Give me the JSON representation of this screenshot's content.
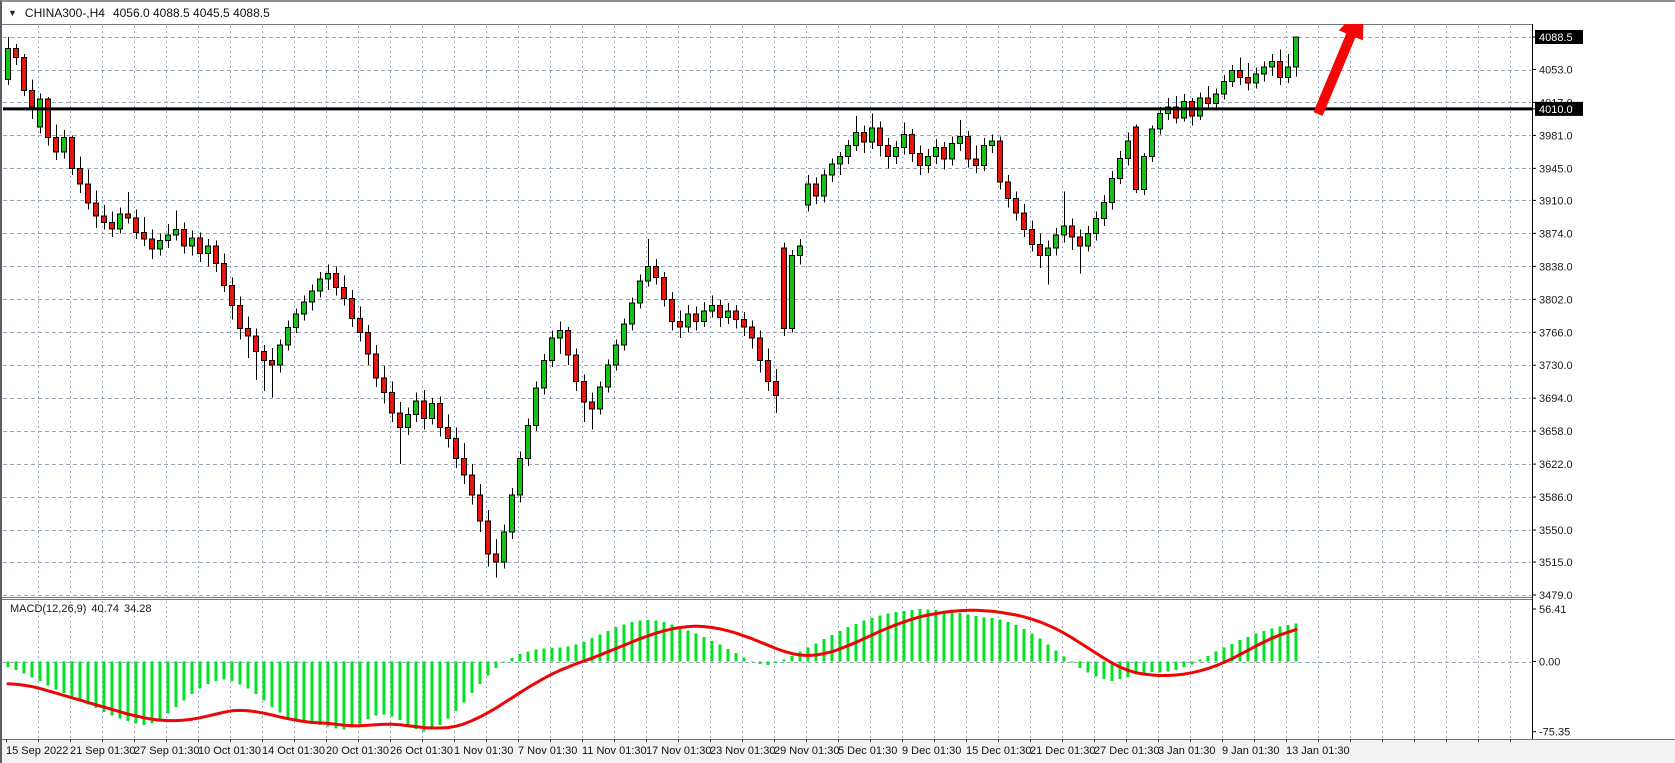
{
  "header": {
    "symbol": "CHINA300-,H4",
    "ohlc_text": "4056.0 4088.5 4045.5 4088.5",
    "open": "4056.0",
    "high": "4088.5",
    "low": "4045.5",
    "close": "4088.5",
    "dropdown_icon": "▼"
  },
  "price_axis": {
    "current_price_badge": "4088.5",
    "hline_badge": "4010.0",
    "labels": [
      {
        "text": "4088.5",
        "value": 4088.5,
        "badge": true
      },
      {
        "text": "4053.0",
        "value": 4053,
        "badge": false
      },
      {
        "text": "4017.0",
        "value": 4017,
        "badge": false
      },
      {
        "text": "4010.0",
        "value": 4010,
        "badge": true
      },
      {
        "text": "3981.0",
        "value": 3981,
        "badge": false
      },
      {
        "text": "3945.0",
        "value": 3945,
        "badge": false
      },
      {
        "text": "3910.0",
        "value": 3910,
        "badge": false
      },
      {
        "text": "3874.0",
        "value": 3874,
        "badge": false
      },
      {
        "text": "3838.0",
        "value": 3838,
        "badge": false
      },
      {
        "text": "3802.0",
        "value": 3802,
        "badge": false
      },
      {
        "text": "3766.0",
        "value": 3766,
        "badge": false
      },
      {
        "text": "3730.0",
        "value": 3730,
        "badge": false
      },
      {
        "text": "3694.0",
        "value": 3694,
        "badge": false
      },
      {
        "text": "3658.0",
        "value": 3658,
        "badge": false
      },
      {
        "text": "3622.0",
        "value": 3622,
        "badge": false
      },
      {
        "text": "3586.0",
        "value": 3586,
        "badge": false
      },
      {
        "text": "3550.0",
        "value": 3550,
        "badge": false
      },
      {
        "text": "3515.0",
        "value": 3515,
        "badge": false
      },
      {
        "text": "3479.0",
        "value": 3479,
        "badge": false
      }
    ]
  },
  "time_axis": {
    "labels": [
      "15 Sep 2022",
      "21 Sep 01:30",
      "27 Sep 01:30",
      "10 Oct 01:30",
      "14 Oct 01:30",
      "20 Oct 01:30",
      "26 Oct 01:30",
      "1 Nov 01:30",
      "7 Nov 01:30",
      "11 Nov 01:30",
      "17 Nov 01:30",
      "23 Nov 01:30",
      "29 Nov 01:30",
      "5 Dec 01:30",
      "9 Dec 01:30",
      "15 Dec 01:30",
      "21 Dec 01:30",
      "27 Dec 01:30",
      "3 Jan 01:30",
      "9 Jan 01:30",
      "13 Jan 01:30"
    ]
  },
  "macd_panel": {
    "label": "MACD(12,26,9)",
    "value": "40.74",
    "signal_value": "34.28",
    "axis_labels": [
      {
        "text": "56.41",
        "value": 56.41
      },
      {
        "text": "0.00",
        "value": 0
      },
      {
        "text": "-75.35",
        "value": -75.35
      }
    ]
  },
  "colors": {
    "bull": "#17c317",
    "bear": "#e8150d",
    "wick": "#000000",
    "macd_bar": "#00e327",
    "macd_signal": "#ee0505",
    "grid": "#9aa7b8",
    "hline": "#000000",
    "badge_bg": "#000000",
    "badge_text": "#ffffff",
    "arrow": "#f40606",
    "axis_text": "#1a1a1a",
    "time_strip_bg": "#f2f2f2",
    "shift_marker": "#8a8a8a"
  },
  "annotations": {
    "arrow": {
      "tail_x": 1316,
      "tail_y": 112,
      "head_x": 1362,
      "head_y": 2
    },
    "shift_marker_x": 1305
  },
  "chart_data": {
    "type": "candlestick",
    "title": "CHINA300-,H4",
    "symbol": "CHINA300-",
    "timeframe": "H4",
    "x_range_labels": [
      "15 Sep 2022",
      "13 Jan 01:30"
    ],
    "price_ylim": [
      3479,
      4102
    ],
    "horizontal_line": 4010.0,
    "current_price": 4088.5,
    "last_bar_ohlc": [
      4056.0,
      4088.5,
      4045.5,
      4088.5
    ],
    "candles_ohlc": [
      [
        4042,
        4088.5,
        4036,
        4076
      ],
      [
        4076,
        4081,
        4058,
        4066
      ],
      [
        4066,
        4070,
        4024,
        4030
      ],
      [
        4030,
        4042,
        3999,
        4012
      ],
      [
        3990,
        4027,
        3983,
        4021
      ],
      [
        4021,
        4023,
        3970,
        3979
      ],
      [
        3979,
        3993,
        3954,
        3963
      ],
      [
        3963,
        3987,
        3956,
        3979
      ],
      [
        3979,
        3981,
        3938,
        3945
      ],
      [
        3945,
        3958,
        3918,
        3928
      ],
      [
        3928,
        3944,
        3900,
        3907
      ],
      [
        3907,
        3921,
        3880,
        3893
      ],
      [
        3893,
        3905,
        3878,
        3886
      ],
      [
        3886,
        3898,
        3870,
        3879
      ],
      [
        3879,
        3902,
        3874,
        3895
      ],
      [
        3895,
        3919,
        3885,
        3891
      ],
      [
        3891,
        3900,
        3868,
        3875
      ],
      [
        3875,
        3892,
        3860,
        3868
      ],
      [
        3868,
        3878,
        3846,
        3857
      ],
      [
        3857,
        3874,
        3850,
        3866
      ],
      [
        3866,
        3884,
        3858,
        3872
      ],
      [
        3872,
        3899,
        3866,
        3878
      ],
      [
        3878,
        3886,
        3852,
        3860
      ],
      [
        3860,
        3877,
        3850,
        3869
      ],
      [
        3869,
        3875,
        3843,
        3852
      ],
      [
        3852,
        3868,
        3838,
        3860
      ],
      [
        3860,
        3866,
        3832,
        3841
      ],
      [
        3841,
        3852,
        3810,
        3817
      ],
      [
        3817,
        3826,
        3780,
        3795
      ],
      [
        3795,
        3805,
        3758,
        3770
      ],
      [
        3770,
        3783,
        3738,
        3762
      ],
      [
        3762,
        3770,
        3714,
        3745
      ],
      [
        3745,
        3752,
        3702,
        3735
      ],
      [
        3735,
        3749,
        3695,
        3730
      ],
      [
        3730,
        3758,
        3722,
        3752
      ],
      [
        3752,
        3779,
        3746,
        3771
      ],
      [
        3771,
        3792,
        3765,
        3786
      ],
      [
        3786,
        3806,
        3779,
        3799
      ],
      [
        3799,
        3818,
        3790,
        3811
      ],
      [
        3811,
        3832,
        3804,
        3824
      ],
      [
        3824,
        3840,
        3812,
        3830
      ],
      [
        3830,
        3838,
        3806,
        3815
      ],
      [
        3815,
        3828,
        3795,
        3803
      ],
      [
        3803,
        3812,
        3772,
        3781
      ],
      [
        3781,
        3794,
        3756,
        3766
      ],
      [
        3766,
        3774,
        3730,
        3742
      ],
      [
        3742,
        3752,
        3706,
        3716
      ],
      [
        3716,
        3729,
        3688,
        3700
      ],
      [
        3700,
        3712,
        3668,
        3678
      ],
      [
        3678,
        3690,
        3622,
        3662
      ],
      [
        3662,
        3684,
        3654,
        3676
      ],
      [
        3676,
        3700,
        3668,
        3691
      ],
      [
        3691,
        3703,
        3660,
        3672
      ],
      [
        3672,
        3694,
        3665,
        3688
      ],
      [
        3688,
        3696,
        3652,
        3662
      ],
      [
        3662,
        3676,
        3640,
        3650
      ],
      [
        3650,
        3662,
        3618,
        3628
      ],
      [
        3628,
        3645,
        3600,
        3610
      ],
      [
        3610,
        3622,
        3578,
        3588
      ],
      [
        3588,
        3600,
        3548,
        3560
      ],
      [
        3560,
        3572,
        3510,
        3524
      ],
      [
        3524,
        3540,
        3498,
        3515
      ],
      [
        3515,
        3556,
        3508,
        3548
      ],
      [
        3548,
        3596,
        3540,
        3588
      ],
      [
        3588,
        3636,
        3580,
        3628
      ],
      [
        3628,
        3672,
        3620,
        3664
      ],
      [
        3664,
        3712,
        3658,
        3705
      ],
      [
        3705,
        3742,
        3698,
        3735
      ],
      [
        3735,
        3768,
        3728,
        3760
      ],
      [
        3760,
        3778,
        3742,
        3768
      ],
      [
        3768,
        3772,
        3730,
        3741
      ],
      [
        3741,
        3748,
        3702,
        3712
      ],
      [
        3712,
        3720,
        3668,
        3690
      ],
      [
        3690,
        3700,
        3660,
        3682
      ],
      [
        3682,
        3712,
        3676,
        3706
      ],
      [
        3706,
        3736,
        3700,
        3730
      ],
      [
        3730,
        3758,
        3724,
        3752
      ],
      [
        3752,
        3781,
        3746,
        3775
      ],
      [
        3775,
        3804,
        3768,
        3798
      ],
      [
        3798,
        3829,
        3792,
        3822
      ],
      [
        3822,
        3868,
        3816,
        3838
      ],
      [
        3838,
        3846,
        3818,
        3826
      ],
      [
        3826,
        3832,
        3794,
        3802
      ],
      [
        3802,
        3810,
        3768,
        3778
      ],
      [
        3778,
        3790,
        3760,
        3772
      ],
      [
        3772,
        3796,
        3766,
        3786
      ],
      [
        3786,
        3794,
        3768,
        3778
      ],
      [
        3778,
        3799,
        3772,
        3789
      ],
      [
        3789,
        3806,
        3782,
        3795
      ],
      [
        3795,
        3801,
        3772,
        3782
      ],
      [
        3782,
        3798,
        3775,
        3789
      ],
      [
        3789,
        3796,
        3770,
        3780
      ],
      [
        3780,
        3788,
        3762,
        3772
      ],
      [
        3772,
        3779,
        3748,
        3760
      ],
      [
        3760,
        3768,
        3722,
        3735
      ],
      [
        3735,
        3748,
        3702,
        3712
      ],
      [
        3712,
        3726,
        3678,
        3697
      ],
      [
        3858,
        3864,
        3762,
        3770
      ],
      [
        3770,
        3856,
        3766,
        3850
      ],
      [
        3850,
        3868,
        3840,
        3860
      ],
      [
        3905,
        3938,
        3898,
        3928
      ],
      [
        3928,
        3935,
        3906,
        3915
      ],
      [
        3915,
        3944,
        3908,
        3938
      ],
      [
        3938,
        3956,
        3930,
        3950
      ],
      [
        3950,
        3963,
        3938,
        3958
      ],
      [
        3958,
        3976,
        3950,
        3970
      ],
      [
        3970,
        4002,
        3964,
        3984
      ],
      [
        3984,
        3992,
        3962,
        3974
      ],
      [
        3974,
        4005,
        3966,
        3989
      ],
      [
        3989,
        3996,
        3958,
        3970
      ],
      [
        3970,
        3978,
        3945,
        3958
      ],
      [
        3958,
        3975,
        3950,
        3968
      ],
      [
        3968,
        3995,
        3960,
        3982
      ],
      [
        3982,
        3988,
        3952,
        3961
      ],
      [
        3961,
        3970,
        3938,
        3948
      ],
      [
        3948,
        3966,
        3940,
        3958
      ],
      [
        3958,
        3977,
        3950,
        3968
      ],
      [
        3968,
        3974,
        3944,
        3955
      ],
      [
        3955,
        3980,
        3948,
        3972
      ],
      [
        3972,
        3998,
        3964,
        3980
      ],
      [
        3980,
        3986,
        3946,
        3955
      ],
      [
        3955,
        3970,
        3940,
        3948
      ],
      [
        3948,
        3978,
        3942,
        3970
      ],
      [
        3970,
        3982,
        3962,
        3975
      ],
      [
        3975,
        3980,
        3922,
        3930
      ],
      [
        3930,
        3938,
        3902,
        3912
      ],
      [
        3912,
        3920,
        3888,
        3896
      ],
      [
        3896,
        3906,
        3870,
        3878
      ],
      [
        3878,
        3888,
        3854,
        3862
      ],
      [
        3862,
        3874,
        3836,
        3850
      ],
      [
        3850,
        3866,
        3818,
        3858
      ],
      [
        3858,
        3880,
        3850,
        3872
      ],
      [
        3872,
        3920,
        3864,
        3882
      ],
      [
        3882,
        3890,
        3856,
        3870
      ],
      [
        3870,
        3878,
        3830,
        3860
      ],
      [
        3860,
        3882,
        3854,
        3874
      ],
      [
        3874,
        3898,
        3866,
        3890
      ],
      [
        3890,
        3916,
        3882,
        3908
      ],
      [
        3908,
        3942,
        3900,
        3934
      ],
      [
        3934,
        3964,
        3928,
        3956
      ],
      [
        3956,
        3984,
        3948,
        3975
      ],
      [
        3990,
        3993,
        3918,
        3922
      ],
      [
        3922,
        3962,
        3916,
        3958
      ],
      [
        3958,
        3992,
        3952,
        3988
      ],
      [
        3988,
        4012,
        3982,
        4005
      ],
      [
        4005,
        4022,
        3998,
        4012
      ],
      [
        4012,
        4024,
        3994,
        4000
      ],
      [
        4000,
        4026,
        3996,
        4018
      ],
      [
        4018,
        4022,
        3992,
        4002
      ],
      [
        4002,
        4028,
        3998,
        4022
      ],
      [
        4022,
        4035,
        4010,
        4016
      ],
      [
        4016,
        4032,
        4008,
        4026
      ],
      [
        4026,
        4047,
        4020,
        4040
      ],
      [
        4040,
        4058,
        4034,
        4052
      ],
      [
        4052,
        4066,
        4036,
        4044
      ],
      [
        4044,
        4060,
        4030,
        4038
      ],
      [
        4038,
        4055,
        4032,
        4048
      ],
      [
        4048,
        4062,
        4040,
        4056
      ],
      [
        4056,
        4070,
        4046,
        4062
      ],
      [
        4062,
        4075,
        4036,
        4044
      ],
      [
        4044,
        4070,
        4038,
        4056
      ],
      [
        4056,
        4088.5,
        4045.5,
        4088.5
      ]
    ],
    "macd": {
      "params": [
        12,
        26,
        9
      ],
      "ylim": [
        -75.35,
        56.41
      ],
      "last_histogram": 40.74,
      "last_signal": 34.28,
      "histogram": [
        -6,
        -9,
        -13,
        -17,
        -21,
        -26,
        -30,
        -34,
        -38,
        -42,
        -46,
        -50,
        -54,
        -58,
        -61,
        -64,
        -66.5,
        -68,
        -66,
        -62,
        -56,
        -49,
        -42,
        -35,
        -29,
        -24,
        -21,
        -19.5,
        -21,
        -24.5,
        -29,
        -35,
        -42,
        -49,
        -55,
        -60,
        -63.5,
        -65.5,
        -66.5,
        -68,
        -70,
        -72,
        -73,
        -71,
        -67,
        -62,
        -58,
        -57,
        -59,
        -63,
        -68,
        -72.5,
        -75.35,
        -73,
        -68,
        -61,
        -53,
        -44,
        -34,
        -24,
        -15,
        -7,
        -1,
        4,
        8,
        11,
        13,
        14,
        14.5,
        15,
        16,
        18,
        21,
        25,
        29,
        33,
        37,
        40,
        42.5,
        44,
        44.5,
        44,
        42.5,
        40,
        37,
        33.5,
        30,
        26.5,
        22,
        18,
        13.5,
        9,
        4.5,
        0.5,
        -2.5,
        -3.5,
        -1.5,
        2,
        6,
        10.5,
        15,
        19.5,
        24,
        28.5,
        33,
        37,
        40.5,
        44,
        47,
        49.5,
        51.5,
        53,
        54.5,
        55.5,
        56.41,
        56,
        55.5,
        54.5,
        53.5,
        52,
        50.5,
        49,
        47.5,
        46.5,
        45,
        42.5,
        39,
        35,
        30,
        24.5,
        18.5,
        12,
        5.5,
        -1,
        -7,
        -12,
        -16,
        -19,
        -21,
        -19,
        -16.5,
        -14,
        -12.5,
        -11.5,
        -12,
        -10.5,
        -9,
        -6,
        -3,
        2,
        6,
        10.5,
        15,
        19,
        23,
        26.5,
        30,
        33,
        35.5,
        37.5,
        39,
        40.74
      ],
      "signal": [
        -24,
        -24.5,
        -25.5,
        -27,
        -29,
        -31.5,
        -34,
        -36.5,
        -39,
        -41.5,
        -44,
        -46.5,
        -49,
        -51.5,
        -54,
        -56.5,
        -58.5,
        -60.5,
        -62,
        -63,
        -63.5,
        -63.5,
        -63,
        -62,
        -60.5,
        -58.5,
        -56.5,
        -54.5,
        -53,
        -52.5,
        -53,
        -54,
        -55.5,
        -57.5,
        -59.5,
        -61.5,
        -63,
        -64.5,
        -65.5,
        -66,
        -66.5,
        -67.5,
        -68.5,
        -69,
        -69,
        -68.5,
        -68,
        -67.5,
        -67.5,
        -68,
        -69,
        -70,
        -71,
        -71.5,
        -71.5,
        -71,
        -69.5,
        -67,
        -63.5,
        -59.5,
        -55,
        -50,
        -44.5,
        -39,
        -33.5,
        -28,
        -23,
        -18,
        -13.5,
        -9.5,
        -6,
        -2.5,
        0.5,
        3.5,
        7,
        10.5,
        14,
        17.5,
        21,
        24.5,
        27.5,
        30.5,
        33,
        35,
        36.5,
        37.5,
        38,
        37.5,
        36.5,
        35,
        33,
        30.5,
        27.5,
        24.5,
        21,
        17.5,
        14,
        11,
        8.5,
        7,
        6.5,
        7,
        8.5,
        10.5,
        13.5,
        17,
        20.5,
        24.5,
        28.5,
        32.5,
        36,
        39.5,
        42.5,
        45.5,
        48,
        50,
        51.5,
        53,
        54,
        54.5,
        55,
        55,
        54.5,
        54,
        53,
        51.5,
        50,
        48,
        45.5,
        42.5,
        39,
        35,
        30.5,
        25.5,
        20,
        14.5,
        9,
        3.5,
        -1.5,
        -6,
        -9.5,
        -12,
        -13.5,
        -14.5,
        -15,
        -15,
        -14.5,
        -13.5,
        -12,
        -10,
        -7.5,
        -4.5,
        -1,
        3,
        7.5,
        12,
        16.5,
        21,
        25,
        28.5,
        31.5,
        34.28
      ]
    }
  }
}
